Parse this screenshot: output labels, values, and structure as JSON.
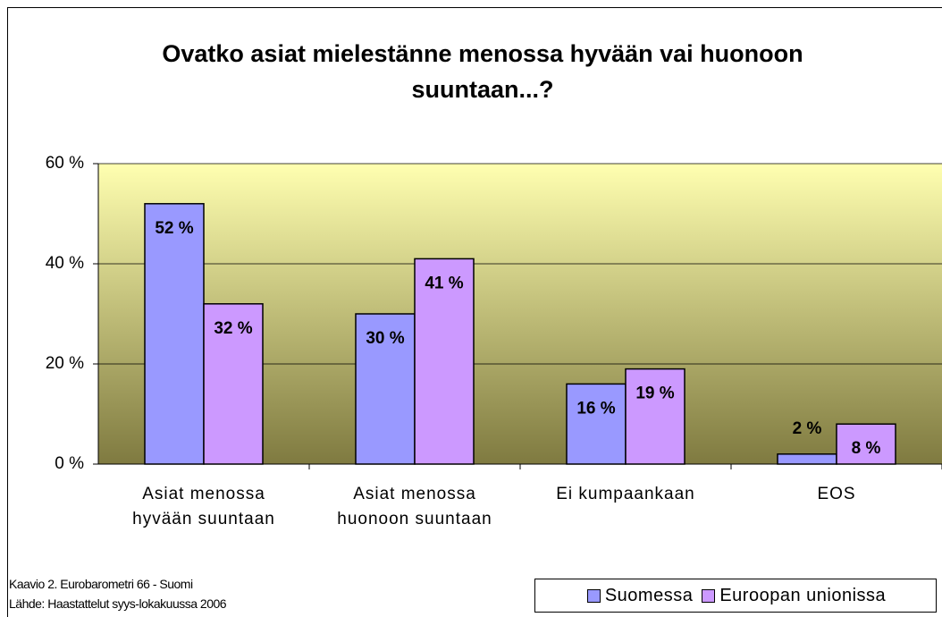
{
  "chart_data": {
    "type": "bar",
    "title": "Ovatko asiat mielestänne menossa hyvään vai huonoon suuntaan...?",
    "categories": [
      "Asiat menossa hyvään suuntaan",
      "Asiat menossa huonoon suuntaan",
      "Ei kumpaankaan",
      "EOS"
    ],
    "series": [
      {
        "name": "Suomessa",
        "color": "#9999ff",
        "values": [
          52,
          30,
          16,
          2
        ],
        "value_labels": [
          "52 %",
          "30 %",
          "16 %",
          "2 %"
        ]
      },
      {
        "name": "Euroopan unionissa",
        "color": "#cc99ff",
        "values": [
          32,
          41,
          19,
          8
        ],
        "value_labels": [
          "32 %",
          "41 %",
          "19 %",
          "8 %"
        ]
      }
    ],
    "ylim": [
      0,
      60
    ],
    "yticks": [
      {
        "value": 0,
        "label": "0 %"
      },
      {
        "value": 20,
        "label": "20 %"
      },
      {
        "value": 40,
        "label": "40 %"
      },
      {
        "value": 60,
        "label": "60 %"
      }
    ],
    "grid": true,
    "legend": "bottom-right",
    "notes": [
      "Kaavio 2. Eurobarometri 66 - Suomi",
      "Lähde: Haastattelut syys-lokakuussa 2006"
    ]
  }
}
